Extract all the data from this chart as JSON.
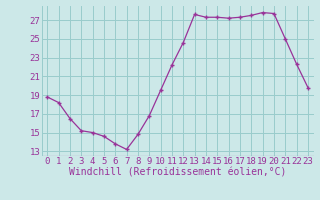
{
  "x": [
    0,
    1,
    2,
    3,
    4,
    5,
    6,
    7,
    8,
    9,
    10,
    11,
    12,
    13,
    14,
    15,
    16,
    17,
    18,
    19,
    20,
    21,
    22,
    23
  ],
  "y": [
    18.8,
    18.2,
    16.5,
    15.2,
    15.0,
    14.6,
    13.8,
    13.2,
    14.8,
    16.8,
    19.5,
    22.2,
    24.6,
    27.6,
    27.3,
    27.3,
    27.2,
    27.3,
    27.5,
    27.8,
    27.7,
    25.0,
    22.3,
    19.8
  ],
  "line_color": "#993399",
  "marker": "+",
  "background_color": "#cce8e8",
  "grid_color": "#99cccc",
  "xlabel": "Windchill (Refroidissement éolien,°C)",
  "xlabel_fontsize": 7,
  "tick_label_color": "#993399",
  "tick_fontsize": 6.5,
  "ylim": [
    12.5,
    28.5
  ],
  "yticks": [
    13,
    15,
    17,
    19,
    21,
    23,
    25,
    27
  ],
  "xlim": [
    -0.5,
    23.5
  ],
  "xticks": [
    0,
    1,
    2,
    3,
    4,
    5,
    6,
    7,
    8,
    9,
    10,
    11,
    12,
    13,
    14,
    15,
    16,
    17,
    18,
    19,
    20,
    21,
    22,
    23
  ]
}
